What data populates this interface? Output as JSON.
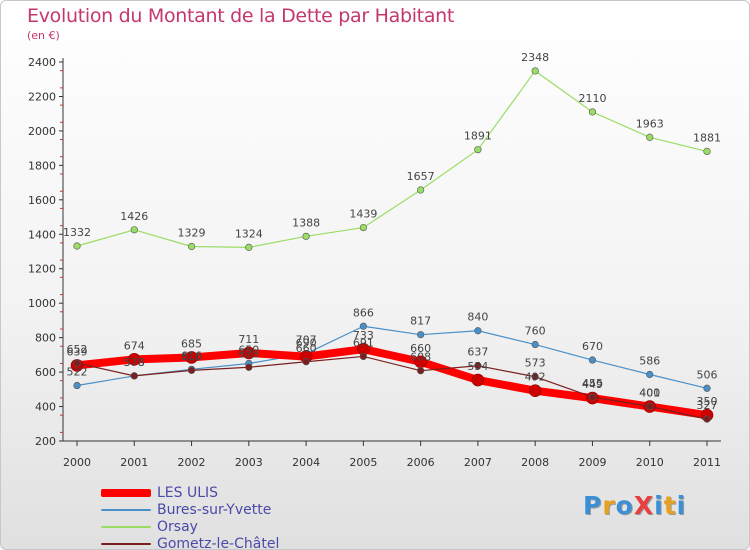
{
  "header": {
    "title": "Evolution du Montant de la Dette par Habitant",
    "subtitle": "(en €)"
  },
  "chart_data": {
    "type": "line",
    "title": "Evolution du Montant de la Dette par Habitant",
    "subtitle": "(en €)",
    "categories": [
      "2000",
      "2001",
      "2002",
      "2003",
      "2004",
      "2005",
      "2006",
      "2007",
      "2008",
      "2009",
      "2010",
      "2011"
    ],
    "ylim": [
      200,
      2400
    ],
    "yticks": [
      200,
      400,
      600,
      800,
      1000,
      1200,
      1400,
      1600,
      1800,
      2000,
      2200,
      2400
    ],
    "grid": false,
    "legend_placement": "bottom-left",
    "series": [
      {
        "name": "LES ULIS",
        "color": "#ff0000",
        "values": [
          639,
          674,
          685,
          711,
          690,
          733,
          660,
          554,
          492,
          449,
          400,
          350
        ]
      },
      {
        "name": "Bures-sur-Yvette",
        "color": "#4a90c8",
        "values": [
          522,
          578,
          616,
          650,
          707,
          866,
          817,
          840,
          760,
          670,
          586,
          506
        ]
      },
      {
        "name": "Orsay",
        "color": "#99dd66",
        "values": [
          1332,
          1426,
          1329,
          1324,
          1388,
          1439,
          1657,
          1891,
          2348,
          2110,
          1963,
          1881
        ]
      },
      {
        "name": "Gometz-le-Châtel",
        "color": "#7a1f1f",
        "values": [
          652,
          578,
          610,
          628,
          660,
          691,
          608,
          637,
          573,
          455,
          401,
          327
        ]
      }
    ]
  },
  "logo": {
    "text": "ProXiti",
    "colors": [
      "#3a8fd6",
      "#e8a020",
      "#3a8fd6",
      "#e84040",
      "#3a8fd6",
      "#e8a020",
      "#3a8fd6"
    ]
  }
}
